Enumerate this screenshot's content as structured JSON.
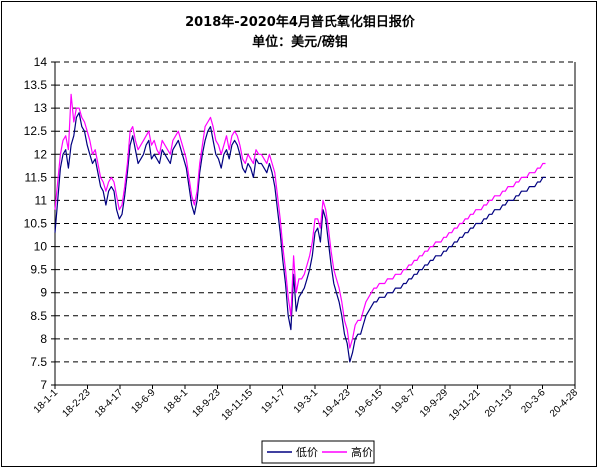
{
  "chart_data": {
    "type": "line",
    "title": "2018年-2020年4月普氏氧化钼日报价",
    "subtitle": "单位：美元/磅钼",
    "xlabel": "",
    "ylabel": "",
    "ylim": [
      7,
      14
    ],
    "yticks": [
      "7",
      "7.5",
      "8",
      "8.5",
      "9",
      "9.5",
      "10",
      "10.5",
      "11",
      "11.5",
      "12",
      "12.5",
      "13",
      "13.5",
      "14"
    ],
    "xticks": [
      "18-1-1",
      "18-2-23",
      "18-4-17",
      "18-6-9",
      "18-8-1",
      "18-9-23",
      "18-11-15",
      "19-1-7",
      "19-3-1",
      "19-4-23",
      "19-6-15",
      "19-8-7",
      "19-9-29",
      "19-11-21",
      "20-1-13",
      "20-3-6",
      "20-4-28"
    ],
    "grid": "horizontal-dashed",
    "legend_position": "bottom-center",
    "x_index": [
      0,
      3,
      6,
      9,
      12,
      15,
      18,
      21,
      24,
      27,
      30,
      33,
      36,
      39,
      42,
      45,
      48,
      51,
      54,
      57,
      60,
      63,
      66,
      69,
      72,
      75,
      78,
      81,
      84,
      87,
      90,
      93,
      96,
      99,
      102,
      105,
      108,
      111,
      114,
      117,
      120,
      123,
      126,
      129,
      132,
      135,
      138,
      141,
      144,
      147,
      150,
      153,
      156,
      159,
      162,
      165,
      168,
      171,
      174,
      177,
      180,
      183,
      186,
      189,
      192,
      195,
      198,
      201,
      204,
      207,
      210,
      213,
      216,
      219,
      222,
      225,
      228,
      231,
      234,
      237,
      240,
      243,
      246,
      249,
      252,
      255,
      258,
      261,
      264,
      267,
      270,
      273,
      276,
      279,
      282,
      285,
      288,
      291,
      294,
      297,
      300,
      303,
      306,
      309,
      312,
      315,
      318,
      321,
      324,
      327,
      330,
      333,
      336,
      339,
      342,
      345,
      348,
      351,
      354,
      357,
      360,
      363,
      366,
      369,
      372,
      375,
      378,
      381,
      384,
      387,
      390,
      393,
      396,
      399,
      402,
      405,
      408,
      411,
      414,
      417,
      420,
      423,
      426,
      429,
      432,
      435,
      438,
      441,
      444,
      447,
      450,
      453,
      456,
      459,
      462,
      465,
      468,
      471,
      474,
      477,
      480,
      483,
      486,
      489,
      492,
      495,
      498,
      501,
      504,
      507,
      510,
      513,
      516,
      519,
      522,
      525,
      528,
      531,
      534,
      537,
      540,
      543,
      546,
      549,
      552,
      555,
      558,
      561,
      564,
      567,
      570,
      573,
      576,
      579,
      582
    ],
    "series": [
      {
        "name": "低价",
        "color": "#000080",
        "values": [
          10.3,
          11.0,
          11.7,
          12.0,
          12.1,
          11.7,
          12.2,
          12.4,
          12.8,
          12.9,
          12.6,
          12.5,
          12.2,
          12.0,
          11.8,
          11.9,
          11.6,
          11.3,
          11.2,
          10.9,
          11.2,
          11.3,
          11.2,
          10.8,
          10.6,
          10.7,
          11.1,
          11.6,
          12.2,
          12.4,
          12.1,
          11.8,
          11.9,
          12.0,
          12.2,
          12.3,
          11.9,
          12.0,
          11.9,
          11.8,
          12.1,
          12.0,
          11.9,
          11.8,
          12.1,
          12.2,
          12.3,
          12.1,
          11.9,
          11.7,
          11.3,
          10.9,
          10.7,
          11.0,
          11.6,
          12.0,
          12.3,
          12.5,
          12.6,
          12.3,
          12.0,
          11.9,
          11.7,
          12.0,
          12.1,
          11.9,
          12.2,
          12.3,
          12.2,
          12.0,
          11.7,
          11.6,
          11.8,
          11.7,
          11.5,
          11.9,
          11.8,
          11.8,
          11.7,
          11.6,
          11.8,
          11.6,
          11.3,
          10.8,
          10.3,
          9.7,
          9.2,
          8.5,
          8.2,
          9.4,
          8.6,
          8.9,
          9.0,
          9.1,
          9.3,
          9.5,
          9.8,
          10.3,
          10.4,
          10.1,
          10.8,
          10.6,
          10.1,
          9.6,
          9.2,
          9.0,
          8.8,
          8.5,
          8.1,
          7.9,
          7.5,
          7.7,
          8.0,
          8.1,
          8.1,
          8.3,
          8.5,
          8.6,
          8.7,
          8.8,
          8.8,
          8.9,
          8.9,
          8.9,
          9.0,
          9.0,
          9.0,
          9.1,
          9.1,
          9.1,
          9.2,
          9.2,
          9.3,
          9.3,
          9.4,
          9.4,
          9.5,
          9.5,
          9.6,
          9.6,
          9.7,
          9.7,
          9.8,
          9.8,
          9.8,
          9.9,
          9.9,
          10.0,
          10.0,
          10.1,
          10.1,
          10.2,
          10.2,
          10.3,
          10.3,
          10.4,
          10.4,
          10.5,
          10.5,
          10.5,
          10.6,
          10.6,
          10.7,
          10.7,
          10.8,
          10.8,
          10.8,
          10.9,
          10.9,
          11.0,
          11.0,
          11.0,
          11.1,
          11.1,
          11.2,
          11.2,
          11.2,
          11.3,
          11.3,
          11.3,
          11.4,
          11.4,
          11.5,
          11.5
        ]
      },
      {
        "name": "高价",
        "color": "#ff00ff",
        "values": [
          10.8,
          11.4,
          12.0,
          12.3,
          12.4,
          12.1,
          13.3,
          12.7,
          13.0,
          13.0,
          12.8,
          12.7,
          12.5,
          12.3,
          12.0,
          12.1,
          11.8,
          11.5,
          11.4,
          11.2,
          11.4,
          11.5,
          11.4,
          11.1,
          10.8,
          10.9,
          11.3,
          11.8,
          12.5,
          12.6,
          12.3,
          12.1,
          12.2,
          12.3,
          12.4,
          12.5,
          12.2,
          12.3,
          12.1,
          12.0,
          12.3,
          12.2,
          12.1,
          12.0,
          12.3,
          12.4,
          12.5,
          12.3,
          12.1,
          11.9,
          11.5,
          11.1,
          10.9,
          11.2,
          11.8,
          12.2,
          12.6,
          12.7,
          12.8,
          12.6,
          12.3,
          12.2,
          12.0,
          12.2,
          12.4,
          12.1,
          12.4,
          12.5,
          12.4,
          12.2,
          11.9,
          11.8,
          12.0,
          11.9,
          11.8,
          12.1,
          12.0,
          12.0,
          11.9,
          11.8,
          12.0,
          11.8,
          11.6,
          11.1,
          10.6,
          10.0,
          9.5,
          8.9,
          8.5,
          9.8,
          9.0,
          9.3,
          9.3,
          9.4,
          9.6,
          9.8,
          10.1,
          10.6,
          10.6,
          10.4,
          11.0,
          10.8,
          10.4,
          9.9,
          9.5,
          9.3,
          9.1,
          8.8,
          8.4,
          8.2,
          7.8,
          8.0,
          8.3,
          8.4,
          8.4,
          8.6,
          8.8,
          8.9,
          9.0,
          9.1,
          9.1,
          9.2,
          9.2,
          9.2,
          9.3,
          9.3,
          9.3,
          9.4,
          9.4,
          9.4,
          9.5,
          9.5,
          9.6,
          9.6,
          9.7,
          9.7,
          9.8,
          9.8,
          9.9,
          9.9,
          10.0,
          10.0,
          10.1,
          10.1,
          10.1,
          10.2,
          10.2,
          10.3,
          10.3,
          10.4,
          10.4,
          10.5,
          10.5,
          10.6,
          10.6,
          10.7,
          10.7,
          10.8,
          10.8,
          10.8,
          10.9,
          10.9,
          11.0,
          11.0,
          11.1,
          11.1,
          11.1,
          11.2,
          11.2,
          11.3,
          11.3,
          11.3,
          11.4,
          11.4,
          11.5,
          11.5,
          11.5,
          11.6,
          11.6,
          11.6,
          11.7,
          11.7,
          11.8,
          11.8
        ]
      }
    ]
  }
}
